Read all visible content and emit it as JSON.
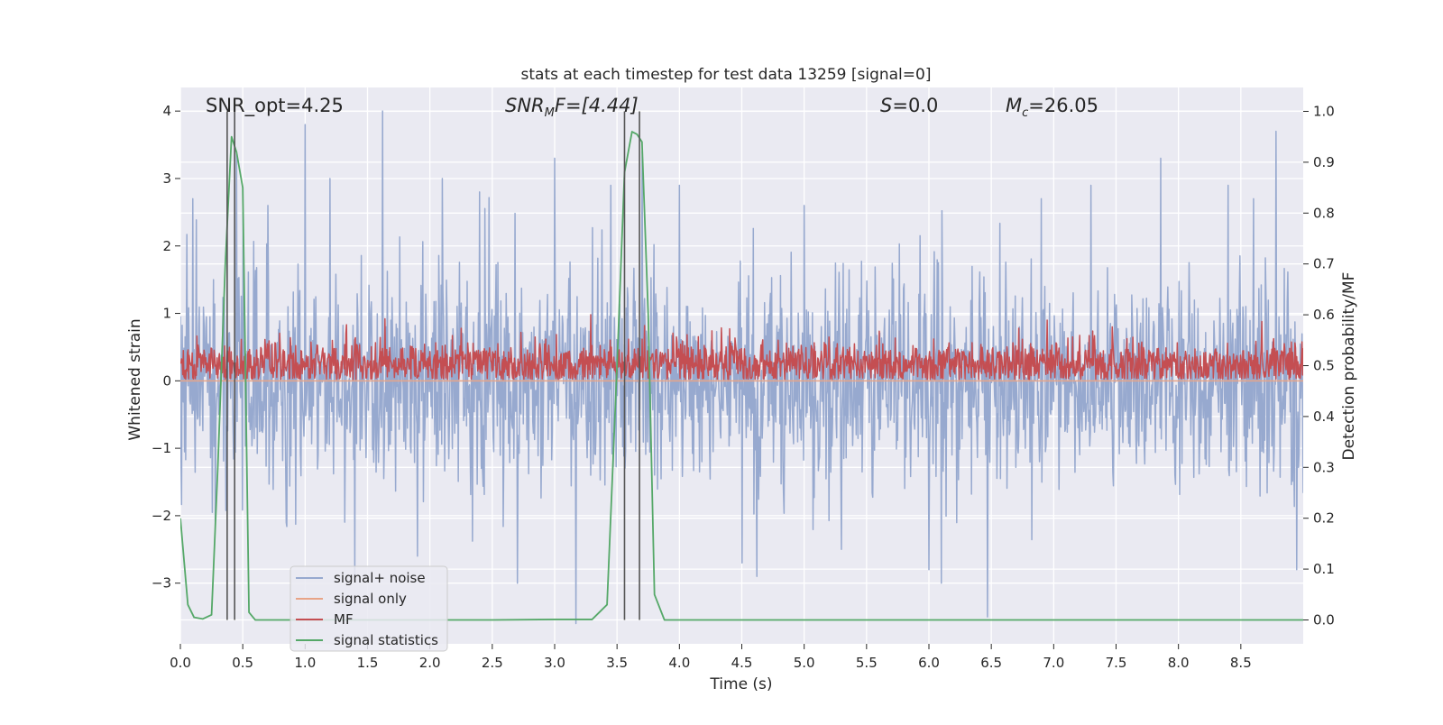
{
  "chart_data": {
    "type": "line",
    "title": "stats at each timestep for test data 13259 [signal=0]",
    "xlabel": "Time (s)",
    "ylabel": "Whitened strain",
    "ylabel_right": "Detection probability/MF",
    "xlim": [
      0.0,
      9.0
    ],
    "ylim": [
      -3.9,
      4.35
    ],
    "ylim_right": [
      -0.047,
      1.047
    ],
    "xticks": [
      0.0,
      0.5,
      1.0,
      1.5,
      2.0,
      2.5,
      3.0,
      3.5,
      4.0,
      4.5,
      5.0,
      5.5,
      6.0,
      6.5,
      7.0,
      7.5,
      8.0,
      8.5
    ],
    "xtick_labels": [
      "0.0",
      "0.5",
      "1.0",
      "1.5",
      "2.0",
      "2.5",
      "3.0",
      "3.5",
      "4.0",
      "4.5",
      "5.0",
      "5.5",
      "6.0",
      "6.5",
      "7.0",
      "7.5",
      "8.0",
      "8.5"
    ],
    "yticks": [
      4,
      3,
      2,
      1,
      0,
      -1,
      -2,
      -3
    ],
    "ytick_labels": [
      "4",
      "3",
      "2",
      "1",
      "0",
      "−1",
      "−2",
      "−3"
    ],
    "yticks_right": [
      1.0,
      0.9,
      0.8,
      0.7,
      0.6,
      0.5,
      0.4,
      0.3,
      0.2,
      0.1,
      0.0
    ],
    "ytick_labels_right": [
      "1.0",
      "0.9",
      "0.8",
      "0.7",
      "0.6",
      "0.5",
      "0.4",
      "0.3",
      "0.2",
      "0.1",
      "0.0"
    ],
    "annotations": {
      "snr_opt": "SNR_opt=4.25",
      "snr_mf_name": "SNR",
      "snr_mf_sub": "M",
      "snr_mf_rest": "F=[4.44]",
      "s_name": "S",
      "s_value": "=0.0",
      "mc_name": "M",
      "mc_sub": "c",
      "mc_value": "=26.05"
    },
    "vertical_lines": [
      0.375,
      0.435,
      3.56,
      3.68
    ],
    "series": [
      {
        "name": "signal+ noise",
        "color": "#97a9cf",
        "axis": "left",
        "noise": {
          "std": 0.78,
          "n_points": 1900,
          "seed": 13259
        },
        "peaks": [
          {
            "x": 0.1,
            "y": 2.7
          },
          {
            "x": 0.28,
            "y": -2.2
          },
          {
            "x": 0.45,
            "y": 3.4
          },
          {
            "x": 0.5,
            "y": 2.5
          },
          {
            "x": 0.7,
            "y": 2.6
          },
          {
            "x": 0.85,
            "y": -2.1
          },
          {
            "x": 1.0,
            "y": 3.8
          },
          {
            "x": 1.2,
            "y": 3.0
          },
          {
            "x": 1.4,
            "y": -2.9
          },
          {
            "x": 1.62,
            "y": 4.0
          },
          {
            "x": 1.9,
            "y": -2.6
          },
          {
            "x": 2.1,
            "y": 3.0
          },
          {
            "x": 2.4,
            "y": 2.8
          },
          {
            "x": 2.7,
            "y": -3.0
          },
          {
            "x": 3.0,
            "y": 3.3
          },
          {
            "x": 3.17,
            "y": -3.6
          },
          {
            "x": 3.45,
            "y": 2.9
          },
          {
            "x": 3.7,
            "y": 3.4
          },
          {
            "x": 4.0,
            "y": 2.9
          },
          {
            "x": 4.5,
            "y": -2.7
          },
          {
            "x": 4.62,
            "y": -2.9
          },
          {
            "x": 5.0,
            "y": 2.6
          },
          {
            "x": 5.3,
            "y": -2.5
          },
          {
            "x": 6.0,
            "y": -2.8
          },
          {
            "x": 6.1,
            "y": -3.0
          },
          {
            "x": 6.47,
            "y": -3.5
          },
          {
            "x": 6.9,
            "y": 2.7
          },
          {
            "x": 7.3,
            "y": 2.9
          },
          {
            "x": 7.86,
            "y": 3.3
          },
          {
            "x": 8.4,
            "y": 2.9
          },
          {
            "x": 8.6,
            "y": 2.7
          },
          {
            "x": 8.78,
            "y": 3.7
          },
          {
            "x": 8.95,
            "y": -2.8
          }
        ]
      },
      {
        "name": "signal only",
        "color": "#e8a487",
        "axis": "left",
        "x": [
          0.0,
          9.0
        ],
        "y": [
          0.0,
          0.0
        ]
      },
      {
        "name": "MF",
        "color": "#c44e52",
        "axis": "left",
        "noise": {
          "base": 0.25,
          "std": 0.17,
          "min": 0.02,
          "n_points": 1900,
          "seed": 4244
        },
        "peaks": [
          {
            "x": 1.64,
            "y": 0.92
          },
          {
            "x": 2.25,
            "y": 0.78
          },
          {
            "x": 3.29,
            "y": 0.98
          },
          {
            "x": 3.72,
            "y": 0.82
          },
          {
            "x": 6.72,
            "y": 0.78
          },
          {
            "x": 6.95,
            "y": 0.9
          },
          {
            "x": 7.47,
            "y": 0.8
          },
          {
            "x": 8.67,
            "y": 0.88
          }
        ]
      },
      {
        "name": "signal statistics",
        "color": "#55a868",
        "axis": "right",
        "x": [
          0.0,
          0.06,
          0.11,
          0.18,
          0.25,
          0.3,
          0.36,
          0.41,
          0.45,
          0.5,
          0.55,
          0.6,
          0.7,
          0.9,
          1.5,
          2.5,
          3.0,
          3.3,
          3.42,
          3.5,
          3.56,
          3.62,
          3.66,
          3.7,
          3.75,
          3.8,
          3.88,
          4.5,
          6.0,
          8.0,
          9.0
        ],
        "y": [
          0.2,
          0.03,
          0.005,
          0.002,
          0.01,
          0.3,
          0.7,
          0.95,
          0.92,
          0.85,
          0.015,
          0.0,
          0.0,
          0.0,
          0.0,
          0.0,
          0.001,
          0.001,
          0.03,
          0.5,
          0.88,
          0.96,
          0.955,
          0.94,
          0.6,
          0.05,
          0.0,
          0.0,
          0.0,
          0.0,
          0.0
        ]
      }
    ],
    "legend": {
      "location": "lower-left",
      "entries": [
        "signal+ noise",
        "signal only",
        "MF",
        "signal statistics"
      ]
    }
  },
  "colors": {
    "plot_background": "#eaeaf2",
    "grid": "#ffffff",
    "text": "#262626",
    "vertical_lines": "#555555"
  }
}
